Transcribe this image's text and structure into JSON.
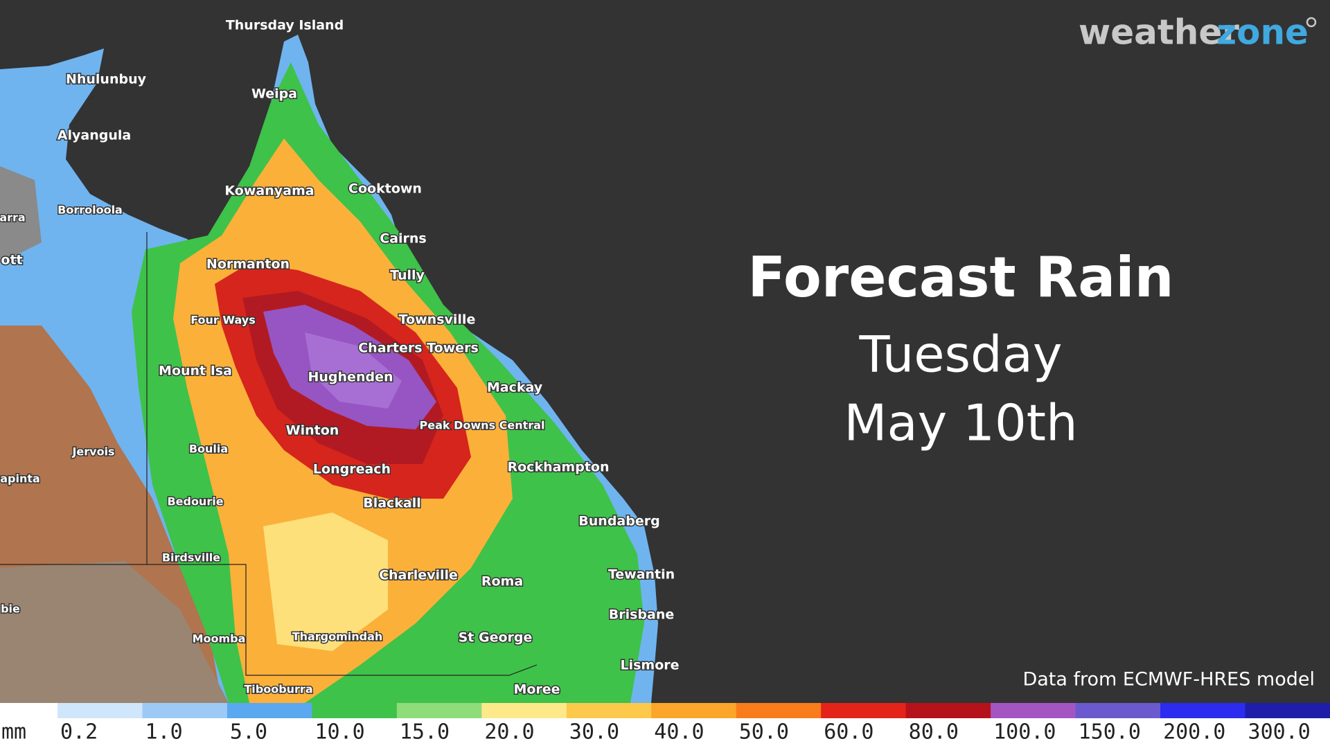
{
  "brand": [
    "weather",
    "zone"
  ],
  "title": "Forecast Rain",
  "day": "Tuesday",
  "date": "May 10th",
  "source": "Data from ECMWF-HRES model",
  "places": [
    "Thursday Island",
    "Nhulunbuy",
    "Weipa",
    "Alyangula",
    "Kowanyama",
    "Cooktown",
    "Borroloola",
    "Cairns",
    "Normanton",
    "Tully",
    "Four Ways",
    "Townsville",
    "Charters Towers",
    "Mount Isa",
    "Hughenden",
    "Mackay",
    "Winton",
    "Peak Downs Central",
    "Boulia",
    "Jervois",
    "Longreach",
    "Rockhampton",
    "Blackall",
    "Bedourie",
    "Bundaberg",
    "Birdsville",
    "Charleville",
    "Roma",
    "Tewantin",
    "Brisbane",
    "Moomba",
    "Thargomindah",
    "St George",
    "Lismore",
    "Tibooburra",
    "Moree",
    "arra",
    "ott",
    "apinta",
    "bie"
  ],
  "legend": {
    "unit": "mm",
    "items": [
      {
        "label": "0.2",
        "color": "#cfe6fb"
      },
      {
        "label": "1.0",
        "color": "#9ccaf5"
      },
      {
        "label": "5.0",
        "color": "#5aa8f0"
      },
      {
        "label": "10.0",
        "color": "#3ec24a"
      },
      {
        "label": "15.0",
        "color": "#8fdc7a"
      },
      {
        "label": "20.0",
        "color": "#fde98a"
      },
      {
        "label": "30.0",
        "color": "#fcc94a"
      },
      {
        "label": "40.0",
        "color": "#fba52a"
      },
      {
        "label": "50.0",
        "color": "#f97c1a"
      },
      {
        "label": "60.0",
        "color": "#e4231a"
      },
      {
        "label": "80.0",
        "color": "#b5121b"
      },
      {
        "label": "100.0",
        "color": "#a356c2"
      },
      {
        "label": "150.0",
        "color": "#6a5acd"
      },
      {
        "label": "200.0",
        "color": "#2b2cf0"
      },
      {
        "label": "300.0",
        "color": "#1e1ea8"
      }
    ]
  }
}
